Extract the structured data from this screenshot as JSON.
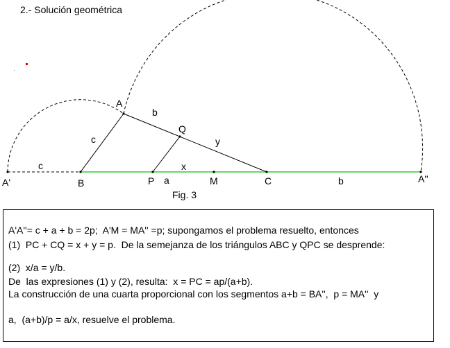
{
  "title": "2.- Solución geométrica",
  "figure": {
    "labels": [
      "A",
      "b",
      "Q",
      "c",
      "y",
      "c",
      "x",
      "A'",
      "B",
      "P",
      "a",
      "M",
      "C",
      "b",
      "A''"
    ],
    "caption": "Fig. 3"
  },
  "text": {
    "lines": [
      "A'A''= c + a + b = 2p;  A'M = MA'' =p; supongamos el problema resuelto, entonces",
      "(1)  PC + CQ = x + y = p.  De la semejanza de los triángulos ABC y QPC se desprende:",
      "(2)  x/a = y/b.",
      "De  las expresiones (1) y (2), resulta:  x = PC = ap/(a+b).",
      "La construcción de una cuarta proporcional con los segmentos a+b = BA'',  p = MA''  y",
      "a,  (a+b)/p = a/x, resuelve el problema."
    ]
  }
}
